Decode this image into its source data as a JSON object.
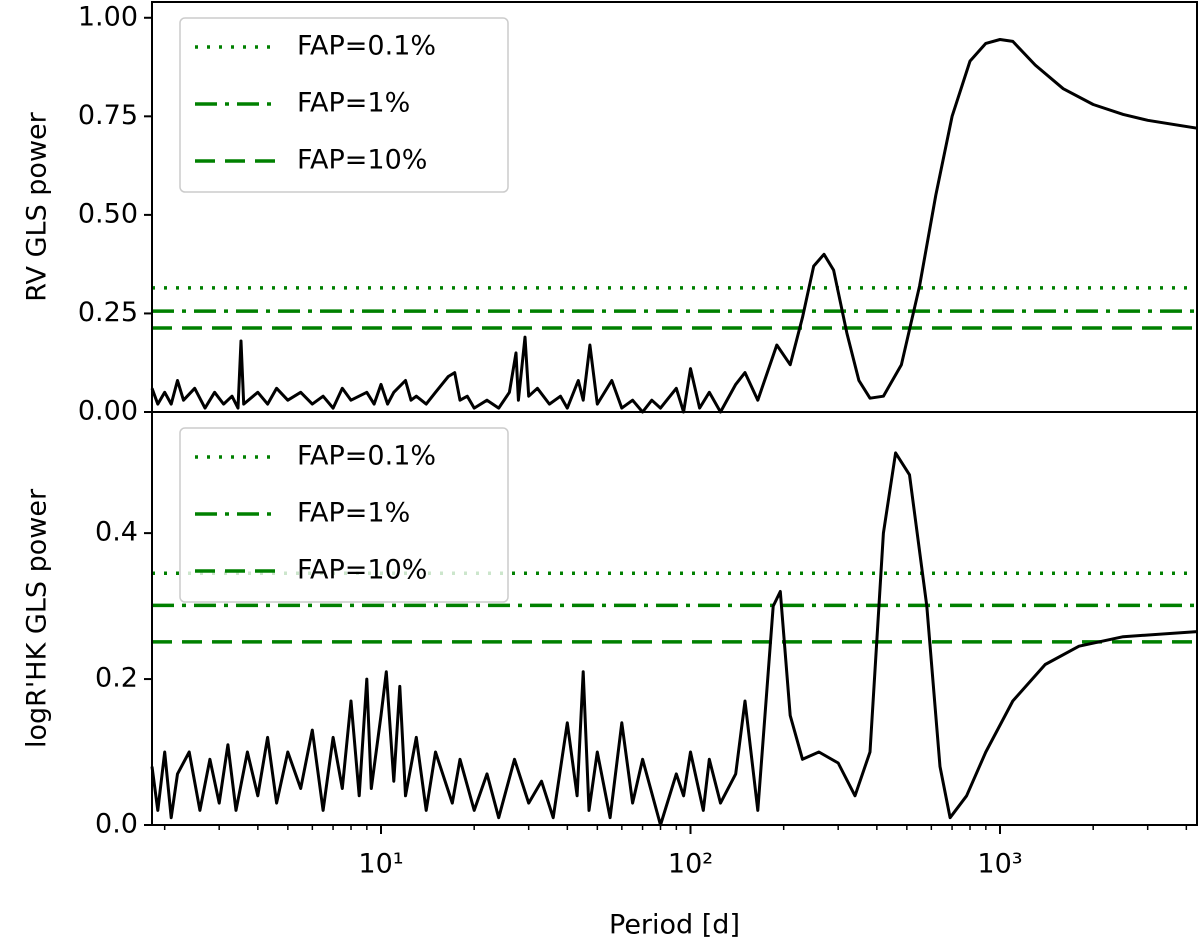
{
  "chart_data": [
    {
      "type": "line",
      "ylabel": "RV GLS power",
      "xscale": "log",
      "xlim": [
        1.82,
        4330
      ],
      "ylim": [
        0,
        1.04
      ],
      "yticks": [
        {
          "value": 0,
          "label": "0.00"
        },
        0.25,
        {
          "value": 0.5,
          "label": "0.50"
        },
        0.75,
        {
          "value": 1,
          "label": "1.00"
        }
      ],
      "legend": "upper left",
      "hlines": [
        {
          "name": "FAP=0.1%",
          "value": 0.315,
          "style": "dotted",
          "color": "#008000"
        },
        {
          "name": "FAP=1%",
          "value": 0.256,
          "style": "dashdot",
          "color": "#008000"
        },
        {
          "name": "FAP=10%",
          "value": 0.213,
          "style": "dashed",
          "color": "#008000"
        }
      ],
      "series": [
        {
          "color": "#000000",
          "x": [
            1.82,
            1.9,
            2,
            2.1,
            2.2,
            2.3,
            2.5,
            2.7,
            2.9,
            3.1,
            3.3,
            3.45,
            3.53,
            3.6,
            4,
            4.3,
            4.6,
            5,
            5.5,
            6,
            6.5,
            7,
            7.5,
            8,
            9,
            9.5,
            10,
            10.5,
            11,
            12,
            12.5,
            13,
            14,
            15,
            16.5,
            17.3,
            18,
            19,
            20,
            22,
            24,
            26,
            27.3,
            27.8,
            29.2,
            30,
            32,
            35,
            38,
            40,
            43.4,
            45,
            47.3,
            50,
            55.7,
            60,
            65,
            70,
            75,
            80,
            90,
            95,
            100,
            107,
            115,
            125,
            140,
            150,
            165,
            190,
            210,
            230,
            250,
            270,
            290,
            320,
            350,
            380,
            420,
            480,
            550,
            620,
            700,
            800,
            900,
            1000,
            1100,
            1300,
            1600,
            2000,
            2500,
            3000,
            4330
          ],
          "values": [
            0.06,
            0.02,
            0.05,
            0.02,
            0.08,
            0.03,
            0.06,
            0.01,
            0.05,
            0.02,
            0.04,
            0.01,
            0.18,
            0.02,
            0.05,
            0.02,
            0.06,
            0.03,
            0.05,
            0.02,
            0.04,
            0.01,
            0.06,
            0.03,
            0.05,
            0.02,
            0.07,
            0.02,
            0.05,
            0.08,
            0.03,
            0.04,
            0.02,
            0.05,
            0.09,
            0.1,
            0.03,
            0.04,
            0.01,
            0.03,
            0.01,
            0.05,
            0.15,
            0.03,
            0.19,
            0.04,
            0.06,
            0.02,
            0.04,
            0.01,
            0.08,
            0.03,
            0.17,
            0.02,
            0.08,
            0.01,
            0.03,
            0,
            0.03,
            0.01,
            0.06,
            0,
            0.11,
            0.01,
            0.05,
            0,
            0.07,
            0.1,
            0.03,
            0.17,
            0.12,
            0.24,
            0.37,
            0.4,
            0.36,
            0.2,
            0.08,
            0.035,
            0.04,
            0.12,
            0.32,
            0.55,
            0.75,
            0.89,
            0.935,
            0.945,
            0.94,
            0.88,
            0.82,
            0.78,
            0.755,
            0.74,
            0.72
          ]
        }
      ]
    },
    {
      "type": "line",
      "ylabel": "logR'HK GLS power",
      "xlabel": "Period [d]",
      "xscale": "log",
      "xlim": [
        1.82,
        4330
      ],
      "ylim": [
        0,
        0.566
      ],
      "xticks": [
        {
          "value": 10,
          "label": "10¹"
        },
        {
          "value": 100,
          "label": "10²"
        },
        {
          "value": 1000,
          "label": "10³"
        }
      ],
      "xminorticks": [
        2,
        3,
        4,
        5,
        6,
        7,
        8,
        9,
        20,
        30,
        40,
        50,
        60,
        70,
        80,
        90,
        200,
        300,
        400,
        500,
        600,
        700,
        800,
        900,
        2000,
        3000,
        4000
      ],
      "yticks": [
        {
          "value": 0,
          "label": "0.0"
        },
        0.2,
        0.4
      ],
      "legend": "upper left",
      "hlines": [
        {
          "name": "FAP=0.1%",
          "value": 0.345,
          "style": "dotted",
          "color": "#008000"
        },
        {
          "name": "FAP=1%",
          "value": 0.301,
          "style": "dashdot",
          "color": "#008000"
        },
        {
          "name": "FAP=10%",
          "value": 0.251,
          "style": "dashed",
          "color": "#008000"
        }
      ],
      "series": [
        {
          "color": "#000000",
          "x": [
            1.82,
            1.9,
            2,
            2.1,
            2.2,
            2.4,
            2.6,
            2.8,
            3,
            3.2,
            3.4,
            3.7,
            4,
            4.3,
            4.6,
            5,
            5.5,
            6,
            6.5,
            7,
            7.5,
            8,
            8.5,
            9,
            9.3,
            10,
            10.4,
            11,
            11.5,
            12,
            13,
            14,
            15,
            17,
            18,
            20,
            22,
            24,
            27,
            30,
            33,
            36,
            40,
            43,
            45,
            47,
            50,
            55,
            60,
            65,
            70,
            80,
            90,
            95,
            100,
            110,
            115,
            125,
            140,
            150,
            165,
            185,
            195,
            210,
            230,
            260,
            300,
            340,
            380,
            420,
            460,
            510,
            580,
            640,
            690,
            780,
            900,
            1100,
            1400,
            1800,
            2500,
            4330
          ],
          "values": [
            0.08,
            0.02,
            0.1,
            0.01,
            0.07,
            0.1,
            0.02,
            0.09,
            0.03,
            0.11,
            0.02,
            0.1,
            0.04,
            0.12,
            0.03,
            0.1,
            0.05,
            0.13,
            0.02,
            0.12,
            0.05,
            0.17,
            0.04,
            0.2,
            0.05,
            0.15,
            0.21,
            0.06,
            0.19,
            0.04,
            0.12,
            0.02,
            0.1,
            0.03,
            0.09,
            0.02,
            0.07,
            0.01,
            0.09,
            0.03,
            0.06,
            0.01,
            0.14,
            0.04,
            0.21,
            0.02,
            0.1,
            0.01,
            0.14,
            0.03,
            0.09,
            0,
            0.07,
            0.04,
            0.1,
            0.02,
            0.09,
            0.03,
            0.07,
            0.17,
            0.02,
            0.3,
            0.32,
            0.15,
            0.09,
            0.1,
            0.085,
            0.04,
            0.1,
            0.4,
            0.51,
            0.48,
            0.3,
            0.08,
            0.01,
            0.04,
            0.1,
            0.17,
            0.22,
            0.245,
            0.258,
            0.265
          ]
        }
      ]
    }
  ]
}
